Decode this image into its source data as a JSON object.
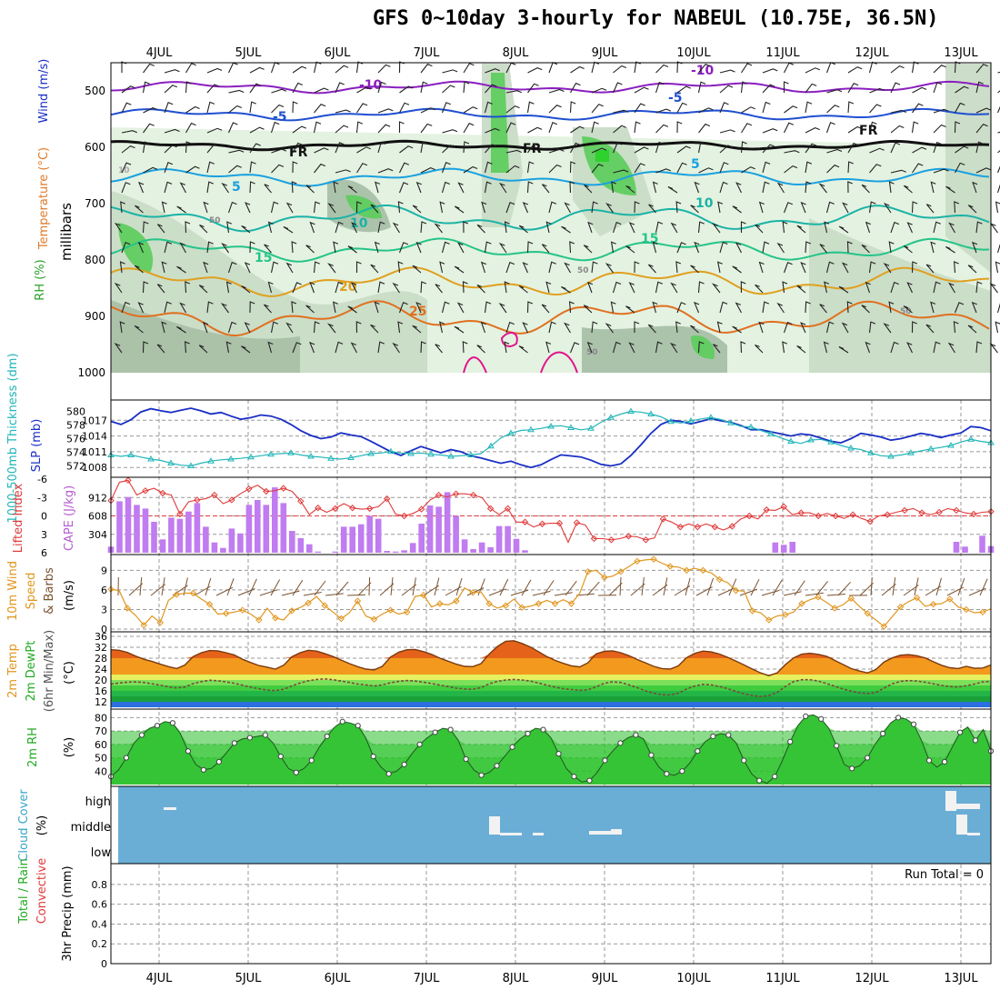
{
  "title": "GFS 0~10day 3-hourly for NABEUL (10.75E, 36.5N)",
  "run_total_label": "Run Total = 0",
  "colors": {
    "rh_light": "#e3f1df",
    "rh_mid": "#c9dcc6",
    "rh_dark": "#a9c0a8",
    "rh_green": "#5fcc5f",
    "rh_bright": "#2bd12b",
    "temp_10": "#8a1fbf",
    "temp_5": "#1f4fd1",
    "fr": "#111111",
    "temp_p5": "#1aa1e0",
    "temp_p10": "#1bb3a6",
    "temp_p15": "#25c489",
    "temp_p20": "#e0a020",
    "temp_p25": "#e07020",
    "temp_p30": "#e0148c",
    "slp": "#1a2fc4",
    "thickness": "#22b5b8",
    "cape": "#c07cf0",
    "lifted": "#e03a3a",
    "wind_speed": "#e0961e",
    "wind_barb": "#7a5230",
    "temp_fill": "#f39a1e",
    "temp_fill_top": "#e5621a",
    "rh2m": "#22c522",
    "cloud_bg": "#6aaed6",
    "precip": "#22aa22",
    "grid": "#999999"
  },
  "chart_data": [
    {
      "type": "contour",
      "panel": "upper-air",
      "ylabel_parts": [
        "RH (%)",
        "Temperature (°C)",
        "Wind (m/s)"
      ],
      "ylabel_units": "millibars",
      "x_dates": [
        "4JUL",
        "5JUL",
        "6JUL",
        "7JUL",
        "8JUL",
        "9JUL",
        "10JUL",
        "11JUL",
        "12JUL",
        "13JUL"
      ],
      "y_ticks": [
        500,
        600,
        700,
        800,
        900,
        1000
      ],
      "ylim": [
        450,
        1000
      ],
      "contour_labels": [
        "-10",
        "-10",
        "-5",
        "-5",
        "FR",
        "FR",
        "FR",
        "5",
        "5",
        "10",
        "10",
        "15",
        "15",
        "20",
        "25",
        "10",
        "50",
        "50",
        "50",
        "50"
      ]
    },
    {
      "type": "line",
      "panel": "slp-thickness",
      "ylabel_left": "1000-500mb Thickness (dm)",
      "ylabel_right": "SLP (mb)",
      "y_ticks_left": [
        572,
        574,
        576,
        578,
        580
      ],
      "y_ticks_right": [
        1008,
        1011,
        1014,
        1017
      ],
      "series": [
        {
          "name": "SLP (mb)",
          "values": [
            1016.8,
            1016.2,
            1017.1,
            1018.6,
            1019.2,
            1018.8,
            1018.5,
            1018.9,
            1019.3,
            1018.8,
            1018.2,
            1018.5,
            1017.8,
            1017.2,
            1017.5,
            1018.0,
            1017.8,
            1017.2,
            1016.2,
            1015.0,
            1014.1,
            1013.5,
            1013.8,
            1014.6,
            1014.2,
            1013.9,
            1013.0,
            1012.0,
            1011.0,
            1010.3,
            1011.2,
            1012.0,
            1011.4,
            1010.8,
            1011.4,
            1011.0,
            1010.2,
            1009.8,
            1009.3,
            1008.8,
            1009.2,
            1008.5,
            1008.0,
            1008.5,
            1009.5,
            1010.4,
            1010.2,
            1010.0,
            1009.4,
            1008.6,
            1008.3,
            1008.7,
            1010.3,
            1012.3,
            1014.5,
            1016.2,
            1017.0,
            1016.8,
            1016.3,
            1016.8,
            1017.3,
            1016.9,
            1016.6,
            1016.0,
            1015.2,
            1015.2,
            1014.8,
            1014.4,
            1014.0,
            1014.4,
            1014.2,
            1013.6,
            1013.0,
            1012.7,
            1013.5,
            1014.5,
            1014.2,
            1013.8,
            1013.2,
            1013.5,
            1014.0,
            1014.5,
            1014.2,
            1013.7,
            1014.2,
            1014.6,
            1015.8,
            1015.6,
            1015.0
          ]
        },
        {
          "name": "1000-500mb Thickness (dm)",
          "values": [
            573.6,
            573.4,
            573.6,
            573.3,
            573.0,
            572.8,
            572.4,
            572.1,
            572.0,
            572.4,
            572.7,
            572.9,
            573.0,
            573.1,
            573.3,
            573.5,
            573.7,
            573.8,
            573.9,
            573.6,
            573.4,
            573.3,
            573.1,
            573.0,
            573.2,
            573.5,
            573.8,
            573.9,
            574.1,
            573.9,
            573.8,
            573.9,
            573.7,
            573.6,
            573.4,
            573.5,
            573.6,
            573.8,
            574.9,
            576.1,
            576.8,
            577.2,
            577.3,
            577.5,
            577.8,
            577.9,
            577.6,
            577.3,
            577.5,
            578.4,
            579.1,
            579.6,
            580.0,
            579.9,
            579.6,
            579.2,
            578.5,
            578.3,
            578.6,
            578.9,
            579.1,
            578.8,
            578.3,
            577.8,
            577.7,
            577.2,
            576.7,
            576.1,
            575.6,
            575.3,
            575.8,
            575.9,
            575.5,
            575.0,
            574.6,
            574.4,
            573.9,
            573.5,
            573.4,
            573.6,
            573.9,
            574.2,
            574.5,
            574.7,
            575.0,
            575.5,
            575.9,
            575.6,
            575.4
          ]
        }
      ]
    },
    {
      "type": "bar",
      "panel": "cape-lifted",
      "ylabel_left": "Lifted Index",
      "ylabel_right": "CAPE (J/kg)",
      "y_ticks_left": [
        -6,
        -3,
        0,
        3,
        6
      ],
      "y_ticks_right": [
        304,
        608,
        912
      ],
      "series": [
        {
          "name": "CAPE (J/kg)",
          "values": [
            100,
            850,
            920,
            790,
            730,
            510,
            220,
            580,
            560,
            680,
            820,
            430,
            170,
            80,
            400,
            320,
            790,
            870,
            790,
            1080,
            820,
            360,
            240,
            140,
            20,
            0,
            20,
            430,
            430,
            470,
            610,
            560,
            30,
            20,
            40,
            160,
            480,
            780,
            760,
            1000,
            610,
            220,
            60,
            170,
            90,
            440,
            440,
            230,
            40,
            0,
            0,
            0,
            0,
            0,
            0,
            0,
            0,
            0,
            0,
            0,
            0,
            0,
            0,
            0,
            0,
            0,
            0,
            0,
            0,
            0,
            0,
            0,
            0,
            0,
            0,
            0,
            0,
            170,
            130,
            180,
            0,
            0,
            0,
            0,
            0,
            0,
            0,
            0,
            0,
            0,
            0,
            0,
            0,
            0,
            0,
            0,
            0,
            0,
            180,
            100,
            0,
            280,
            110
          ]
        },
        {
          "name": "Lifted Index",
          "values": [
            -2.5,
            -5.5,
            -5.8,
            -3.4,
            -4.1,
            -4.5,
            -3.7,
            -3.4,
            -0.3,
            -2.3,
            -2.6,
            -2.8,
            -3.4,
            -2.0,
            -2.6,
            -3.6,
            -4.4,
            -5.0,
            -4.0,
            -4.1,
            -4.5,
            -4.0,
            -2.4,
            -0.2,
            -1.3,
            -0.6,
            -1.2,
            -2.0,
            -1.3,
            -1.1,
            -1.2,
            -1.5,
            -2.8,
            -0.3,
            0.0,
            -0.4,
            -1.1,
            -2.6,
            -3.4,
            -3.1,
            -3.6,
            -3.6,
            -3.4,
            -3.0,
            -1.2,
            -0.2,
            -1.2,
            1.0,
            1.0,
            1.8,
            1.3,
            1.2,
            1.2,
            4.3,
            1.1,
            1.5,
            3.7,
            3.7,
            3.9,
            3.7,
            3.3,
            3.4,
            3.9,
            3.6,
            0.5,
            1.0,
            1.8,
            1.3,
            1.8,
            1.3,
            1.8,
            2.3,
            1.7,
            0.5,
            0.0,
            0.5,
            -1.0,
            -0.9,
            -1.5,
            -0.2,
            -0.5,
            -0.5,
            0.0,
            -0.4,
            0.0,
            0.4,
            -0.2,
            0.4,
            0.9,
            0.0,
            -0.2,
            -0.6,
            -0.9,
            -1.2,
            -0.5,
            -0.2,
            -0.6,
            -1.2,
            -0.9,
            -0.5,
            -0.3,
            -0.6,
            -0.7
          ]
        }
      ]
    },
    {
      "type": "line",
      "panel": "wind10m",
      "ylabel_parts": [
        "10m Wind",
        "Speed",
        "& Barbs"
      ],
      "ylabel_units": "(m/s)",
      "y_ticks": [
        0,
        3,
        6,
        9
      ],
      "series": [
        {
          "name": "Speed",
          "values": [
            6.1,
            5.9,
            3.2,
            2.1,
            0.6,
            2.0,
            1.0,
            4.4,
            5.3,
            5.5,
            5.5,
            4.6,
            3.8,
            2.3,
            2.4,
            2.6,
            2.9,
            2.3,
            1.4,
            3.2,
            1.7,
            1.4,
            2.8,
            3.3,
            4.0,
            5.0,
            3.6,
            2.6,
            1.6,
            2.5,
            4.3,
            2.0,
            1.5,
            2.3,
            2.9,
            2.3,
            2.6,
            5.0,
            5.2,
            3.4,
            3.9,
            3.7,
            4.3,
            6.3,
            5.6,
            5.7,
            3.9,
            3.2,
            3.6,
            4.6,
            3.3,
            3.5,
            3.9,
            4.4,
            3.9,
            4.5,
            3.9,
            5.5,
            8.8,
            9.0,
            7.9,
            8.1,
            8.8,
            9.6,
            10.4,
            10.6,
            10.7,
            10.1,
            9.6,
            9.5,
            9.0,
            9.3,
            9.0,
            8.6,
            7.6,
            7.1,
            5.9,
            5.8,
            2.8,
            2.5,
            1.4,
            2.0,
            2.2,
            2.6,
            3.9,
            4.5,
            4.9,
            4.1,
            3.2,
            3.7,
            4.7,
            3.5,
            2.4,
            1.4,
            0.4,
            1.9,
            3.4,
            4.2,
            4.8,
            3.5,
            3.8,
            3.9,
            4.6,
            3.4,
            3.0,
            2.5,
            2.6,
            3.1
          ]
        }
      ]
    },
    {
      "type": "area",
      "panel": "temp2m",
      "ylabel_parts": [
        "2m Temp",
        "2m DewPt",
        "(6hr Min/Max)"
      ],
      "ylabel_units": "(°C)",
      "y_ticks": [
        12,
        16,
        20,
        24,
        28,
        32,
        36
      ],
      "series": [
        {
          "name": "2m Temp",
          "values": [
            31.1,
            30.9,
            30.1,
            28.8,
            27.6,
            26.8,
            25.8,
            24.9,
            24.2,
            25.5,
            28.6,
            30.0,
            30.8,
            30.7,
            30.0,
            29.2,
            27.6,
            26.4,
            25.3,
            24.7,
            24.0,
            25.4,
            28.5,
            30.0,
            30.9,
            30.6,
            29.7,
            28.6,
            27.3,
            26.0,
            24.9,
            24.0,
            23.7,
            25.0,
            28.4,
            30.2,
            31.1,
            31.2,
            30.4,
            29.4,
            28.0,
            26.9,
            25.8,
            25.0,
            24.9,
            26.0,
            29.5,
            32.3,
            34.2,
            34.4,
            33.4,
            32.1,
            30.4,
            28.6,
            27.2,
            26.1,
            25.2,
            24.8,
            26.3,
            29.6,
            30.5,
            30.7,
            30.0,
            28.9,
            27.5,
            26.3,
            25.0,
            24.2,
            24.0,
            25.2,
            28.2,
            29.8,
            30.6,
            30.3,
            29.5,
            28.3,
            26.9,
            25.5,
            24.0,
            22.6,
            21.6,
            22.6,
            25.6,
            28.1,
            29.5,
            29.8,
            29.4,
            28.7,
            27.2,
            25.7,
            24.2,
            23.3,
            22.6,
            23.8,
            26.6,
            28.1,
            29.1,
            29.3,
            28.9,
            28.1,
            26.7,
            25.4,
            24.5,
            24.2,
            25.0,
            24.3,
            24.4,
            25.5
          ]
        },
        {
          "name": "2m DewPt",
          "values": [
            18.5,
            18.9,
            19.2,
            19.3,
            19.1,
            18.6,
            18.1,
            17.5,
            17.1,
            17.4,
            18.7,
            19.4,
            19.9,
            19.7,
            19.3,
            18.8,
            18.1,
            17.4,
            16.8,
            16.3,
            16.1,
            16.6,
            17.8,
            18.9,
            19.7,
            20.2,
            20.4,
            20.1,
            19.6,
            19.1,
            18.5,
            18.2,
            17.8,
            18.2,
            19.0,
            19.5,
            19.8,
            19.6,
            19.2,
            18.7,
            18.1,
            17.6,
            17.0,
            16.7,
            16.6,
            17.2,
            18.6,
            19.5,
            20.0,
            20.2,
            20.0,
            19.6,
            18.9,
            18.1,
            17.4,
            16.8,
            16.5,
            16.2,
            16.4,
            17.5,
            18.8,
            19.3,
            19.1,
            18.2,
            17.2,
            16.0,
            15.2,
            14.6,
            14.5,
            15.2,
            16.7,
            17.8,
            18.4,
            18.2,
            17.6,
            16.8,
            15.8,
            14.9,
            14.3,
            13.9,
            14.3,
            15.4,
            17.6,
            19.4,
            20.1,
            20.1,
            19.6,
            18.7,
            17.7,
            16.7,
            15.9,
            15.3,
            15.0,
            15.4,
            17.0,
            18.6,
            19.5,
            19.8,
            19.6,
            19.2,
            18.6,
            18.0,
            17.6,
            17.4,
            17.9,
            18.5,
            19.3,
            19.5
          ]
        }
      ]
    },
    {
      "type": "area",
      "panel": "rh2m",
      "ylabel": "2m RH",
      "ylabel_units": "(%)",
      "y_ticks": [
        40,
        50,
        60,
        70,
        80
      ],
      "series": [
        {
          "name": "2m RH",
          "values": [
            36,
            41,
            50,
            61,
            67,
            72,
            74,
            77,
            76,
            68,
            55,
            45,
            41,
            42,
            47,
            54,
            61,
            64,
            65,
            66,
            67,
            61,
            51,
            42,
            39,
            42,
            48,
            58,
            66,
            73,
            77,
            76,
            74,
            65,
            51,
            43,
            38,
            40,
            45,
            53,
            60,
            65,
            69,
            72,
            71,
            63,
            49,
            41,
            37,
            39,
            44,
            51,
            58,
            64,
            68,
            72,
            71,
            65,
            53,
            42,
            36,
            32,
            33,
            39,
            48,
            55,
            61,
            65,
            67,
            64,
            52,
            43,
            38,
            37,
            40,
            46,
            55,
            62,
            66,
            68,
            67,
            61,
            48,
            38,
            33,
            31,
            36,
            48,
            62,
            74,
            81,
            82,
            79,
            72,
            59,
            45,
            42,
            44,
            50,
            60,
            68,
            76,
            80,
            79,
            75,
            63,
            48,
            43,
            47,
            58,
            69,
            73,
            63,
            71,
            55
          ]
        }
      ]
    },
    {
      "type": "heatmap",
      "panel": "cloud",
      "ylabel": "Cloud Cover",
      "ylabel_units": "(%)",
      "levels": [
        "high",
        "middle",
        "low"
      ]
    },
    {
      "type": "bar",
      "panel": "precip",
      "ylabel_parts": [
        "Total / Rain",
        "Convective"
      ],
      "ylabel_units": "3hr Precip (mm)",
      "y_ticks": [
        0,
        0.2,
        0.4,
        0.6,
        0.8
      ],
      "values": []
    }
  ]
}
